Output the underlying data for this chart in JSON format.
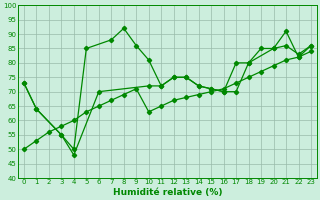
{
  "x": [
    0,
    1,
    2,
    3,
    4,
    5,
    6,
    7,
    8,
    9,
    10,
    11,
    12,
    13,
    14,
    15,
    16,
    17,
    18,
    19,
    20,
    21,
    22,
    23
  ],
  "series1_x": [
    0,
    1,
    3,
    4,
    5,
    7,
    8,
    9,
    10,
    11,
    12,
    13,
    14,
    15,
    16,
    17,
    18,
    20,
    21,
    22,
    23
  ],
  "series1_y": [
    73,
    64,
    55,
    50,
    85,
    88,
    92,
    86,
    81,
    72,
    75,
    75,
    72,
    71,
    70,
    70,
    80,
    85,
    91,
    82,
    86
  ],
  "series2_x": [
    0,
    1,
    3,
    4,
    6,
    10,
    11,
    12,
    13,
    14,
    15,
    16,
    17,
    18,
    19,
    20,
    21,
    22,
    23
  ],
  "series2_y": [
    73,
    64,
    55,
    48,
    70,
    72,
    72,
    75,
    75,
    72,
    71,
    70,
    80,
    80,
    85,
    85,
    86,
    83,
    86
  ],
  "series3_x": [
    0,
    1,
    2,
    3,
    4,
    5,
    6,
    7,
    8,
    9,
    10,
    11,
    12,
    13,
    14,
    15,
    16,
    17,
    18,
    19,
    20,
    21,
    22,
    23
  ],
  "series3_y": [
    50,
    53,
    56,
    58,
    60,
    63,
    65,
    67,
    69,
    71,
    63,
    65,
    67,
    68,
    69,
    70,
    71,
    73,
    75,
    77,
    79,
    81,
    82,
    84
  ],
  "line_color": "#008800",
  "bg_color": "#cceedd",
  "grid_color": "#99bbaa",
  "xlabel": "Humidité relative (%)",
  "ylim": [
    40,
    100
  ],
  "xlim": [
    -0.5,
    23.5
  ],
  "yticks": [
    40,
    45,
    50,
    55,
    60,
    65,
    70,
    75,
    80,
    85,
    90,
    95,
    100
  ],
  "xticks": [
    0,
    1,
    2,
    3,
    4,
    5,
    6,
    7,
    8,
    9,
    10,
    11,
    12,
    13,
    14,
    15,
    16,
    17,
    18,
    19,
    20,
    21,
    22,
    23
  ],
  "xlabel_fontsize": 6.5,
  "tick_fontsize": 5.0
}
